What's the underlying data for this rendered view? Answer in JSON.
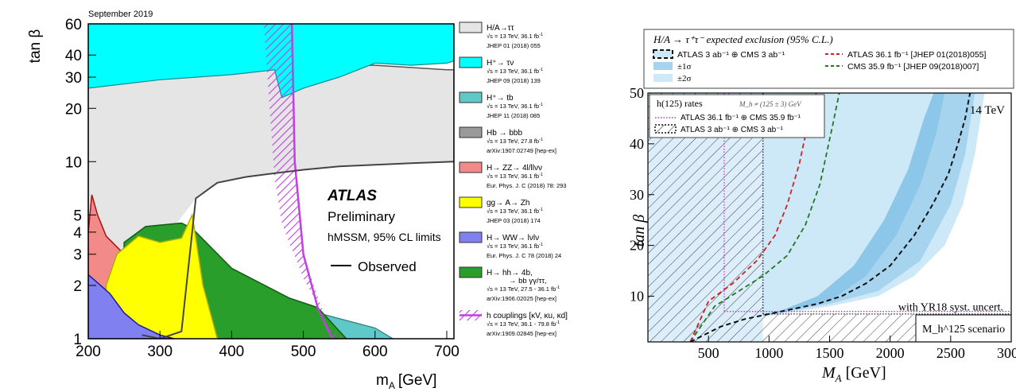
{
  "chart_data": [
    {
      "type": "area",
      "date_label": "September 2019",
      "brand": "ATLAS",
      "subtitle": "Preliminary",
      "scenario": "hMSSM, 95% CL limits",
      "observed_label": "Observed",
      "xlabel": "m",
      "xlabel_sub": "A",
      "xlabel_unit": "[GeV]",
      "ylabel": "tan β",
      "xlim": [
        200,
        710
      ],
      "ylim": [
        1,
        60
      ],
      "yscale": "log",
      "xticks": [
        "200",
        "300",
        "400",
        "500",
        "600",
        "700"
      ],
      "yticks": [
        "1",
        "2",
        "3",
        "4",
        "5",
        "10",
        "20",
        "30",
        "40",
        "60"
      ],
      "colors": {
        "htautau": "#e5e5e5",
        "hplus_taunu": "#00ffff",
        "hplus_tb": "#5fc9c9",
        "hbbb": "#9a9a9a",
        "hzz": "#f28a8a",
        "ggazh": "#ffff00",
        "hww": "#8080f0",
        "hhh": "#2a9e2a",
        "hcoup": "#c040e0"
      },
      "legend": [
        {
          "key": "htautau",
          "label": "H/A→ττ",
          "energy": "√s = 13 TeV, 36.1 fb",
          "ref": "JHEP 01 (2018) 055"
        },
        {
          "key": "hplus_taunu",
          "label": "H⁺→ τν",
          "energy": "√s = 13 TeV, 36.1 fb",
          "ref": "JHEP 09 (2018) 139"
        },
        {
          "key": "hplus_tb",
          "label": "H⁺→ tb",
          "energy": "√s = 13 TeV, 36.1 fb",
          "ref": "JHEP 11 (2018) 085"
        },
        {
          "key": "hbbb",
          "label": "Hb → bbb",
          "energy": "√s = 13 TeV, 27.8 fb",
          "ref": "arXiv:1907.02749 [hep-ex]"
        },
        {
          "key": "hzz",
          "label": "H→ ZZ→ 4l/llνν",
          "energy": "√s = 13 TeV, 36.1 fb",
          "ref": "Eur. Phys. J. C (2018) 78: 293"
        },
        {
          "key": "ggazh",
          "label": "gg→ A→ Zh",
          "energy": "√s = 13 TeV, 36.1 fb",
          "ref": "JHEP 03 (2018) 174"
        },
        {
          "key": "hww",
          "label": "H→ WW→ lνlν",
          "energy": "√s = 13 TeV, 36.1 fb",
          "ref": "Eur. Phys. J. C 78 (2018) 24"
        },
        {
          "key": "hhh",
          "label": "H→ hh→ 4b,",
          "label2": "→ bb γγ/ττ,",
          "energy": "√s = 13 TeV, 27.5 - 36.1 fb",
          "ref": "arXiv:1906.02025 [hep-ex]"
        },
        {
          "key": "hcoup",
          "label": "h couplings [κV, κu, κd]",
          "energy": "√s = 13 TeV, 36.1 - 79.8 fb",
          "ref": "arXiv:1909.02845 [hep-ex]"
        }
      ],
      "series": [
        {
          "key": "htautau",
          "name": "H/A→ττ",
          "boundary_x": [
            200,
            250,
            300,
            350,
            400,
            450,
            500,
            550,
            600,
            650,
            700,
            710
          ],
          "boundary_y": [
            55,
            50,
            45,
            42,
            40,
            38,
            36,
            35,
            35,
            34,
            33,
            33
          ]
        },
        {
          "key": "hplus_taunu",
          "name": "H⁺→ τν",
          "region_x": [
            200,
            300,
            400,
            460,
            470,
            500,
            550,
            600,
            650,
            700,
            710
          ],
          "upper_y": [
            60,
            60,
            60,
            60,
            60,
            60,
            60,
            60,
            60,
            60,
            60
          ],
          "lower_y": [
            26,
            29,
            31,
            33,
            23,
            26,
            30,
            36,
            35,
            36,
            37
          ]
        },
        {
          "key": "hplus_tb",
          "name": "H⁺→ tb",
          "region_x": [
            200,
            300,
            400,
            500,
            600,
            710
          ],
          "top_y": [
            48,
            50,
            53,
            57,
            58,
            60
          ]
        },
        {
          "key": "hbbb",
          "name": "Hb → bbb",
          "boundary_x": [
            350,
            380,
            420,
            450,
            500,
            550,
            600,
            650,
            710
          ],
          "boundary_y": [
            6.2,
            7.6,
            8.2,
            8.5,
            9.0,
            9.4,
            9.6,
            9.8,
            10.0
          ]
        },
        {
          "key": "hzz",
          "name": "H→ ZZ→ 4l/llνν",
          "boundary_x": [
            205,
            213,
            225,
            250,
            270,
            300,
            330,
            350,
            380
          ],
          "boundary_y": [
            6.5,
            5.0,
            3.8,
            3.0,
            2.8,
            2.7,
            2.5,
            2.2,
            1.0
          ]
        },
        {
          "key": "ggazh",
          "name": "gg→ A→ Zh",
          "boundary_x": [
            225,
            240,
            270,
            300,
            330,
            345,
            360,
            380
          ],
          "boundary_y": [
            2.0,
            3.0,
            3.8,
            3.5,
            3.7,
            5.0,
            2.0,
            1.0
          ]
        },
        {
          "key": "hww",
          "name": "H→ WW→ lνlν",
          "boundary_x": [
            200,
            230,
            250,
            270,
            300,
            320
          ],
          "boundary_y": [
            2.3,
            1.8,
            1.4,
            1.2,
            1.05,
            1.0
          ]
        },
        {
          "key": "hhh",
          "name": "H→ hh→ 4b, → bb γγ/ττ,",
          "boundary_x": [
            250,
            280,
            330,
            345,
            400,
            480,
            520,
            560
          ],
          "boundary_y": [
            3.5,
            4.3,
            4.5,
            4.2,
            2.5,
            1.7,
            1.5,
            1.0
          ]
        },
        {
          "key": "hcoup",
          "name": "h couplings [κV, κu, κd]",
          "boundary_x": [
            445,
            450,
            470,
            480,
            490,
            500,
            540
          ],
          "boundary_y": [
            60,
            3.0,
            2.0,
            1.6,
            1.3,
            1.15,
            1.0
          ]
        },
        {
          "key": "observed_hbbb",
          "name": "Observed",
          "x": [
            275,
            300,
            330,
            350,
            380,
            420,
            450,
            500,
            550,
            600,
            650,
            710
          ],
          "y": [
            1.05,
            1.0,
            1.1,
            6.2,
            7.6,
            8.2,
            8.5,
            9.0,
            9.4,
            9.6,
            9.8,
            10.0
          ]
        }
      ]
    },
    {
      "type": "area",
      "title": "H/A → τ⁺τ⁻ expected exclusion (95% C.L.)",
      "legend": [
        {
          "label": "ATLAS 3 ab⁻¹ ⊕ CMS 3 ab⁻¹",
          "style": "dashed-box"
        },
        {
          "label": "±1σ",
          "color": "#a6d4ee"
        },
        {
          "label": "±2σ",
          "color": "#cde8f7"
        },
        {
          "label": "ATLAS 36.1 fb⁻¹ [JHEP 01(2018)055]",
          "color": "#cc2222",
          "style": "dashed"
        },
        {
          "label": "CMS 35.9 fb⁻¹ [JHEP 09(2018)007]",
          "color": "#227722",
          "style": "dashed"
        }
      ],
      "rates_title": "h(125) rates",
      "rates_note": "M_h ≠ (125 ± 3) GeV",
      "rates_legend": [
        {
          "label": "ATLAS 36.1 fb⁻¹ ⊕ CMS 35.9 fb⁻¹",
          "color": "#cc33cc",
          "style": "dotted"
        },
        {
          "label": "ATLAS 3 ab⁻¹ ⊕ CMS 3 ab⁻¹",
          "style": "hatched"
        }
      ],
      "energy": "14 TeV",
      "syst_note": "with YR18 syst. uncert.",
      "scenario": "M_h^125 scenario",
      "xlabel": "M_A [GeV]",
      "ylabel": "tan β",
      "xlim": [
        0,
        3000
      ],
      "ylim": [
        1,
        50
      ],
      "xticks": [
        "500",
        "1000",
        "1500",
        "2000",
        "2500",
        "3000"
      ],
      "yticks": [
        "10",
        "20",
        "30",
        "40",
        "50"
      ],
      "series": [
        {
          "name": "expected median",
          "x": [
            350,
            600,
            800,
            1000,
            1200,
            1400,
            1600,
            1800,
            2000,
            2200,
            2350,
            2480,
            2560,
            2620,
            2660
          ],
          "y": [
            1,
            4,
            5.5,
            6.5,
            7.5,
            8.5,
            10,
            12.5,
            16,
            22,
            28,
            34,
            40,
            45,
            50
          ]
        },
        {
          "name": "+2σ edge",
          "x": [
            350,
            700,
            1100,
            1500,
            1900,
            2200,
            2450,
            2600,
            2700,
            2780
          ],
          "y": [
            1,
            5,
            6.5,
            8,
            10,
            14,
            20,
            28,
            38,
            50
          ]
        },
        {
          "name": "+1σ edge",
          "x": [
            350,
            700,
            1100,
            1500,
            1900,
            2250,
            2500,
            2620,
            2700
          ],
          "y": [
            1,
            5,
            6.8,
            8.5,
            11,
            17,
            28,
            38,
            50
          ]
        },
        {
          "name": "-1σ edge",
          "x": [
            350,
            700,
            1100,
            1500,
            1800,
            2050,
            2250,
            2380,
            2450
          ],
          "y": [
            1,
            5,
            7,
            9,
            14,
            22,
            32,
            42,
            50
          ]
        },
        {
          "name": "-2σ edge",
          "x": [
            350,
            700,
            1100,
            1400,
            1700,
            1950,
            2150,
            2280,
            2360
          ],
          "y": [
            1,
            5,
            7.2,
            10,
            16,
            25,
            35,
            45,
            50
          ]
        },
        {
          "name": "ATLAS 36.1 fb⁻¹",
          "x": [
            350,
            500,
            700,
            900,
            1050,
            1150,
            1250,
            1330,
            1390
          ],
          "y": [
            1,
            9,
            12.5,
            17,
            22,
            28,
            36,
            45,
            50
          ]
        },
        {
          "name": "CMS 35.9 fb⁻¹",
          "x": [
            350,
            550,
            750,
            950,
            1150,
            1300,
            1420,
            1520,
            1580
          ],
          "y": [
            1,
            8,
            11,
            14,
            18,
            24,
            32,
            43,
            50
          ]
        }
      ],
      "excluded_region_x": [
        0,
        950
      ],
      "syst_band_max_y": 6.5
    }
  ]
}
